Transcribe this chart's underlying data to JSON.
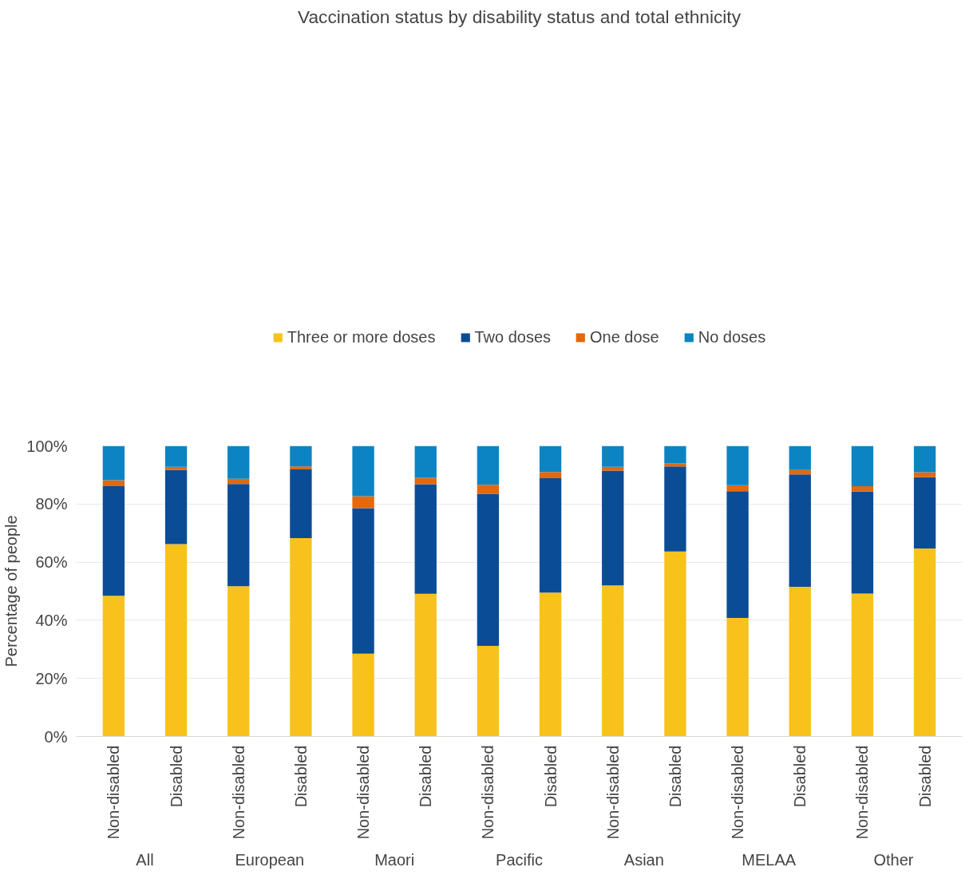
{
  "chart_data": {
    "type": "bar",
    "stacked": true,
    "title": "Vaccination status by disability status and total ethnicity",
    "ylabel": "Percentage of people",
    "categories": [
      "Non-disabled",
      "Disabled",
      "Non-disabled",
      "Disabled",
      "Non-disabled",
      "Disabled",
      "Non-disabled",
      "Disabled",
      "Non-disabled",
      "Disabled",
      "Non-disabled",
      "Disabled",
      "Non-disabled",
      "Disabled"
    ],
    "annotations": [
      "All",
      "European",
      "Maori",
      "Pacific",
      "Asian",
      "MELAA",
      "Other"
    ],
    "series": [
      {
        "name": "Three or more doses",
        "color": "#f7c21b",
        "values": [
          48.4,
          66.2,
          51.7,
          68.3,
          28.5,
          49.1,
          31.2,
          49.5,
          52.0,
          63.7,
          40.8,
          51.5,
          49.2,
          64.7
        ]
      },
      {
        "name": "Two doses",
        "color": "#0b4c97",
        "values": [
          37.7,
          25.5,
          35.2,
          23.6,
          50.1,
          37.7,
          52.3,
          39.4,
          39.5,
          29.2,
          43.6,
          38.7,
          35.1,
          24.5
        ]
      },
      {
        "name": "One dose",
        "color": "#e2690f",
        "values": [
          2.1,
          1.1,
          1.8,
          1.0,
          4.1,
          2.2,
          3.1,
          2.1,
          1.3,
          1.1,
          2.1,
          1.5,
          1.8,
          1.7
        ]
      },
      {
        "name": "No doses",
        "color": "#0c84c4",
        "values": [
          11.8,
          7.2,
          11.3,
          7.1,
          17.3,
          11.0,
          13.4,
          9.0,
          7.2,
          6.0,
          13.5,
          8.3,
          13.9,
          9.1
        ]
      }
    ],
    "ylim": [
      0,
      100
    ],
    "yticks": [
      {
        "value": 0,
        "label": "0%"
      },
      {
        "value": 20,
        "label": "20%"
      },
      {
        "value": 40,
        "label": "40%"
      },
      {
        "value": 60,
        "label": "60%"
      },
      {
        "value": 80,
        "label": "80%"
      },
      {
        "value": 100,
        "label": "100%"
      }
    ],
    "grid": "y",
    "legend": "top"
  }
}
